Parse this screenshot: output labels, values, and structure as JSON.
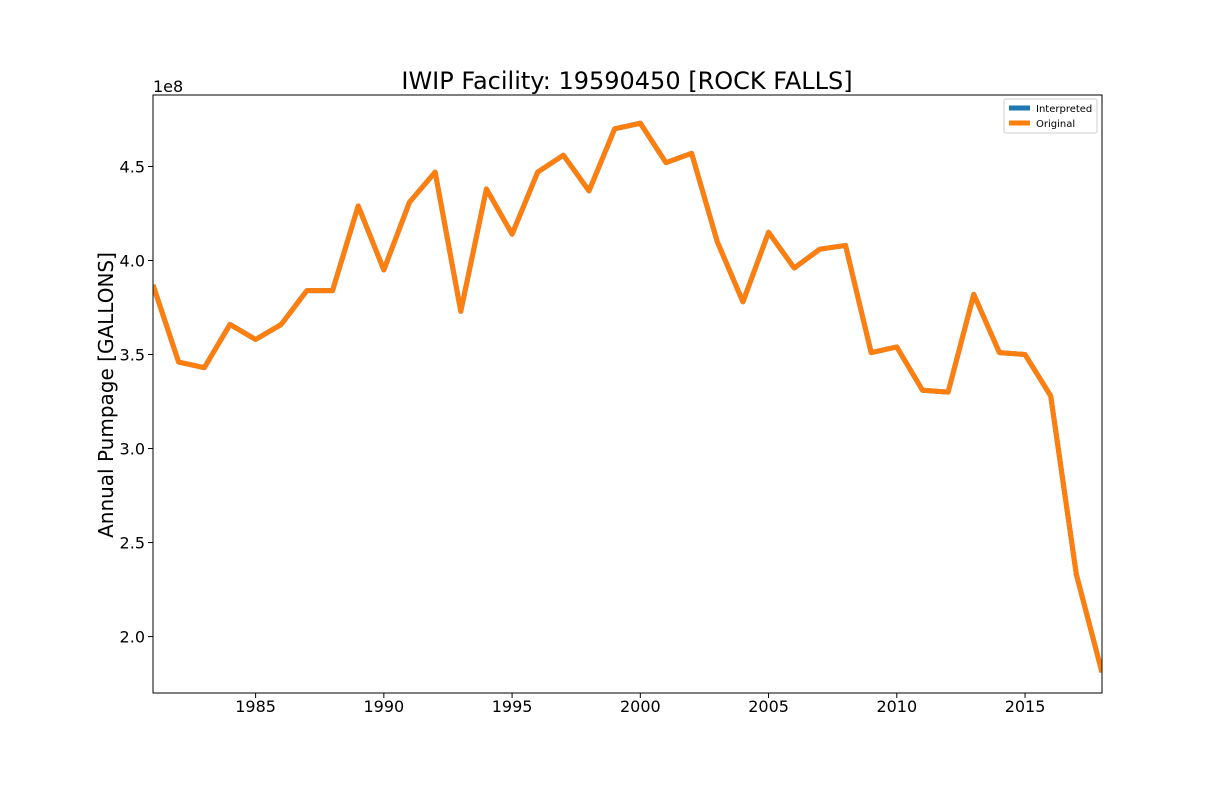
{
  "chart_data": {
    "type": "line",
    "title": "IWIP Facility: 19590450 [ROCK FALLS]",
    "xlabel": "",
    "ylabel": "Annual Pumpage [GALLONS]",
    "y_offset_label": "1e8",
    "xlim": [
      1981,
      2018
    ],
    "ylim": [
      1.7,
      4.88
    ],
    "x_ticks": [
      1985,
      1990,
      1995,
      2000,
      2005,
      2010,
      2015
    ],
    "x_tick_labels": [
      "1985",
      "1990",
      "1995",
      "2000",
      "2005",
      "2010",
      "2015"
    ],
    "y_ticks": [
      2.0,
      2.5,
      3.0,
      3.5,
      4.0,
      4.5
    ],
    "y_tick_labels": [
      "2.0",
      "2.5",
      "3.0",
      "3.5",
      "4.0",
      "4.5"
    ],
    "grid": false,
    "legend_position": "top-right",
    "x": [
      1981,
      1982,
      1983,
      1984,
      1985,
      1986,
      1987,
      1988,
      1989,
      1990,
      1991,
      1992,
      1993,
      1994,
      1995,
      1996,
      1997,
      1998,
      1999,
      2000,
      2001,
      2002,
      2003,
      2004,
      2005,
      2006,
      2007,
      2008,
      2009,
      2010,
      2011,
      2012,
      2013,
      2014,
      2015,
      2016,
      2017,
      2018
    ],
    "series": [
      {
        "name": "Interpreted",
        "color": "#1f77b4",
        "values": [
          3.87,
          3.46,
          3.43,
          3.66,
          3.58,
          3.66,
          3.84,
          3.84,
          4.29,
          3.95,
          4.31,
          4.47,
          3.73,
          4.38,
          4.14,
          4.47,
          4.56,
          4.37,
          4.7,
          4.73,
          4.52,
          4.57,
          4.1,
          3.78,
          4.15,
          3.96,
          4.06,
          4.08,
          3.51,
          3.54,
          3.31,
          3.3,
          3.82,
          3.51,
          3.5,
          3.28,
          2.33,
          1.81
        ]
      },
      {
        "name": "Original",
        "color": "#ff7f0e",
        "values": [
          3.87,
          3.46,
          3.43,
          3.66,
          3.58,
          3.66,
          3.84,
          3.84,
          4.29,
          3.95,
          4.31,
          4.47,
          3.73,
          4.38,
          4.14,
          4.47,
          4.56,
          4.37,
          4.7,
          4.73,
          4.52,
          4.57,
          4.1,
          3.78,
          4.15,
          3.96,
          4.06,
          4.08,
          3.51,
          3.54,
          3.31,
          3.3,
          3.82,
          3.51,
          3.5,
          3.28,
          2.33,
          1.81
        ]
      }
    ]
  }
}
